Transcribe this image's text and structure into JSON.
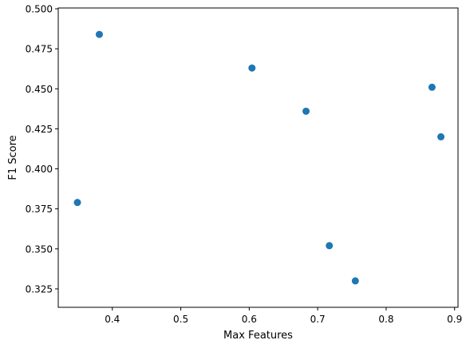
{
  "chart_data": {
    "type": "scatter",
    "title": "",
    "xlabel": "Max Features",
    "ylabel": "F1 Score",
    "xlim": [
      0.321,
      0.905
    ],
    "ylim": [
      0.3135,
      0.5005
    ],
    "xticks": [
      0.4,
      0.5,
      0.6,
      0.7,
      0.8,
      0.9
    ],
    "xtick_labels": [
      "0.4",
      "0.5",
      "0.6",
      "0.7",
      "0.8",
      "0.9"
    ],
    "yticks": [
      0.325,
      0.35,
      0.375,
      0.4,
      0.425,
      0.45,
      0.475,
      0.5
    ],
    "ytick_labels": [
      "0.325",
      "0.350",
      "0.375",
      "0.400",
      "0.425",
      "0.450",
      "0.475",
      "0.500"
    ],
    "grid": false,
    "legend": "none",
    "marker_color": "#1f77b4",
    "series": [
      {
        "points": [
          {
            "x": 0.349,
            "y": 0.379
          },
          {
            "x": 0.381,
            "y": 0.484
          },
          {
            "x": 0.604,
            "y": 0.463
          },
          {
            "x": 0.683,
            "y": 0.436
          },
          {
            "x": 0.717,
            "y": 0.352
          },
          {
            "x": 0.755,
            "y": 0.33
          },
          {
            "x": 0.867,
            "y": 0.451
          },
          {
            "x": 0.88,
            "y": 0.42
          }
        ]
      }
    ]
  }
}
